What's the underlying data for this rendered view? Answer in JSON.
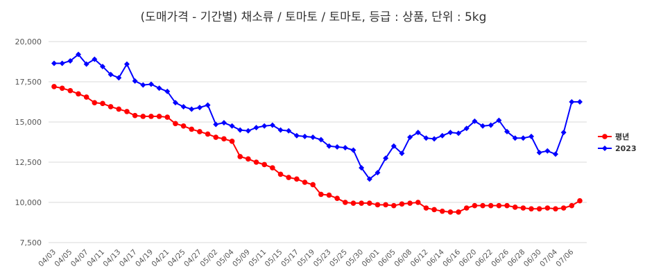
{
  "chart_data": {
    "type": "line",
    "title": "(도매가격 - 기간별) 채소류 / 토마토 / 토마토, 등급 : 상품, 단위 : 5kg",
    "xlabel": "",
    "ylabel": "",
    "ylim": [
      7500,
      20000
    ],
    "yticks": [
      7500,
      10000,
      12500,
      15000,
      17500,
      20000
    ],
    "ytick_labels": [
      "7,500",
      "10,000",
      "12,500",
      "15,000",
      "17,500",
      "20,000"
    ],
    "grid": "horizontal",
    "legend": "right",
    "x": [
      "04/03",
      "04/04",
      "04/05",
      "04/06",
      "04/07",
      "04/10",
      "04/11",
      "04/12",
      "04/13",
      "04/14",
      "04/17",
      "04/18",
      "04/19",
      "04/20",
      "04/21",
      "04/24",
      "04/25",
      "04/26",
      "04/27",
      "04/28",
      "05/02",
      "05/03",
      "05/04",
      "05/08",
      "05/09",
      "05/10",
      "05/11",
      "05/12",
      "05/15",
      "05/16",
      "05/17",
      "05/18",
      "05/19",
      "05/22",
      "05/23",
      "05/24",
      "05/25",
      "05/26",
      "05/30",
      "05/31",
      "06/01",
      "06/02",
      "06/05",
      "06/07",
      "06/08",
      "06/09",
      "06/12",
      "06/13",
      "06/14",
      "06/15",
      "06/16",
      "06/19",
      "06/20",
      "06/21",
      "06/22",
      "06/23",
      "06/26",
      "06/27",
      "06/28",
      "06/29",
      "06/30",
      "07/03",
      "07/04",
      "07/05",
      "07/06",
      "07/07"
    ],
    "xtick_labels": [
      "04/03",
      "04/05",
      "04/07",
      "04/11",
      "04/13",
      "04/17",
      "04/19",
      "04/21",
      "04/25",
      "04/27",
      "05/02",
      "05/04",
      "05/09",
      "05/11",
      "05/15",
      "05/17",
      "05/19",
      "05/23",
      "05/25",
      "05/30",
      "06/01",
      "06/05",
      "06/08",
      "06/12",
      "06/14",
      "06/16",
      "06/20",
      "06/22",
      "06/26",
      "06/28",
      "06/30",
      "07/04",
      "07/06"
    ],
    "series": [
      {
        "name": "평년",
        "color": "#ff0000",
        "marker": "circle",
        "values": [
          17200,
          17100,
          16950,
          16750,
          16550,
          16200,
          16150,
          15950,
          15800,
          15650,
          15400,
          15350,
          15350,
          15350,
          15300,
          14900,
          14750,
          14550,
          14400,
          14250,
          14050,
          13950,
          13800,
          12850,
          12700,
          12500,
          12350,
          12150,
          11750,
          11550,
          11450,
          11250,
          11100,
          10500,
          10450,
          10250,
          10000,
          9950,
          9950,
          9950,
          9850,
          9850,
          9800,
          9900,
          9950,
          10000,
          9650,
          9550,
          9450,
          9400,
          9400,
          9650,
          9800,
          9800,
          9800,
          9800,
          9800,
          9700,
          9650,
          9600,
          9600,
          9650,
          9600,
          9650,
          9800,
          10100
        ]
      },
      {
        "name": "2023",
        "color": "#0000ff",
        "marker": "diamond",
        "values": [
          18650,
          18650,
          18800,
          19200,
          18600,
          18900,
          18450,
          17950,
          17750,
          18600,
          17550,
          17300,
          17350,
          17100,
          16900,
          16200,
          15950,
          15800,
          15900,
          16050,
          14850,
          14950,
          14750,
          14500,
          14450,
          14650,
          14750,
          14800,
          14500,
          14450,
          14150,
          14100,
          14050,
          13900,
          13500,
          13450,
          13400,
          13250,
          12150,
          11450,
          11850,
          12750,
          13500,
          13050,
          14050,
          14350,
          14000,
          13950,
          14150,
          14350,
          14300,
          14600,
          15050,
          14750,
          14800,
          15100,
          14400,
          14000,
          14000,
          14100,
          13100,
          13200,
          13000,
          14350,
          16250,
          16250
        ]
      }
    ]
  }
}
